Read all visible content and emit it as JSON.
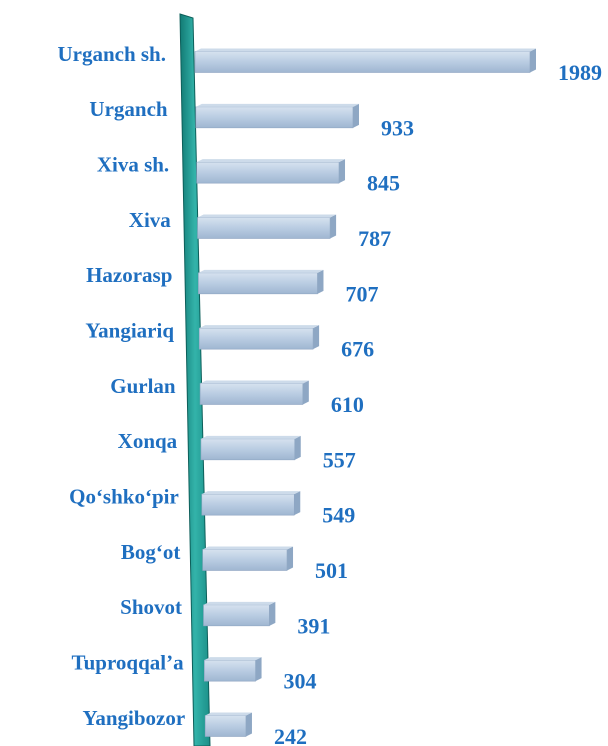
{
  "chart_data": {
    "type": "bar",
    "orientation": "horizontal",
    "categories": [
      "Urganch sh.",
      "Urganch",
      "Xiva sh.",
      "Xiva",
      "Hazorasp",
      "Yangiariq",
      "Gurlan",
      "Xonqa",
      "Qo‘shko‘pir",
      "Bog‘ot",
      "Shovot",
      "Tuproqqal’a",
      "Yangibozor"
    ],
    "values": [
      1989,
      933,
      845,
      787,
      707,
      676,
      610,
      557,
      549,
      501,
      391,
      304,
      242
    ],
    "color": "#b9cce2"
  }
}
